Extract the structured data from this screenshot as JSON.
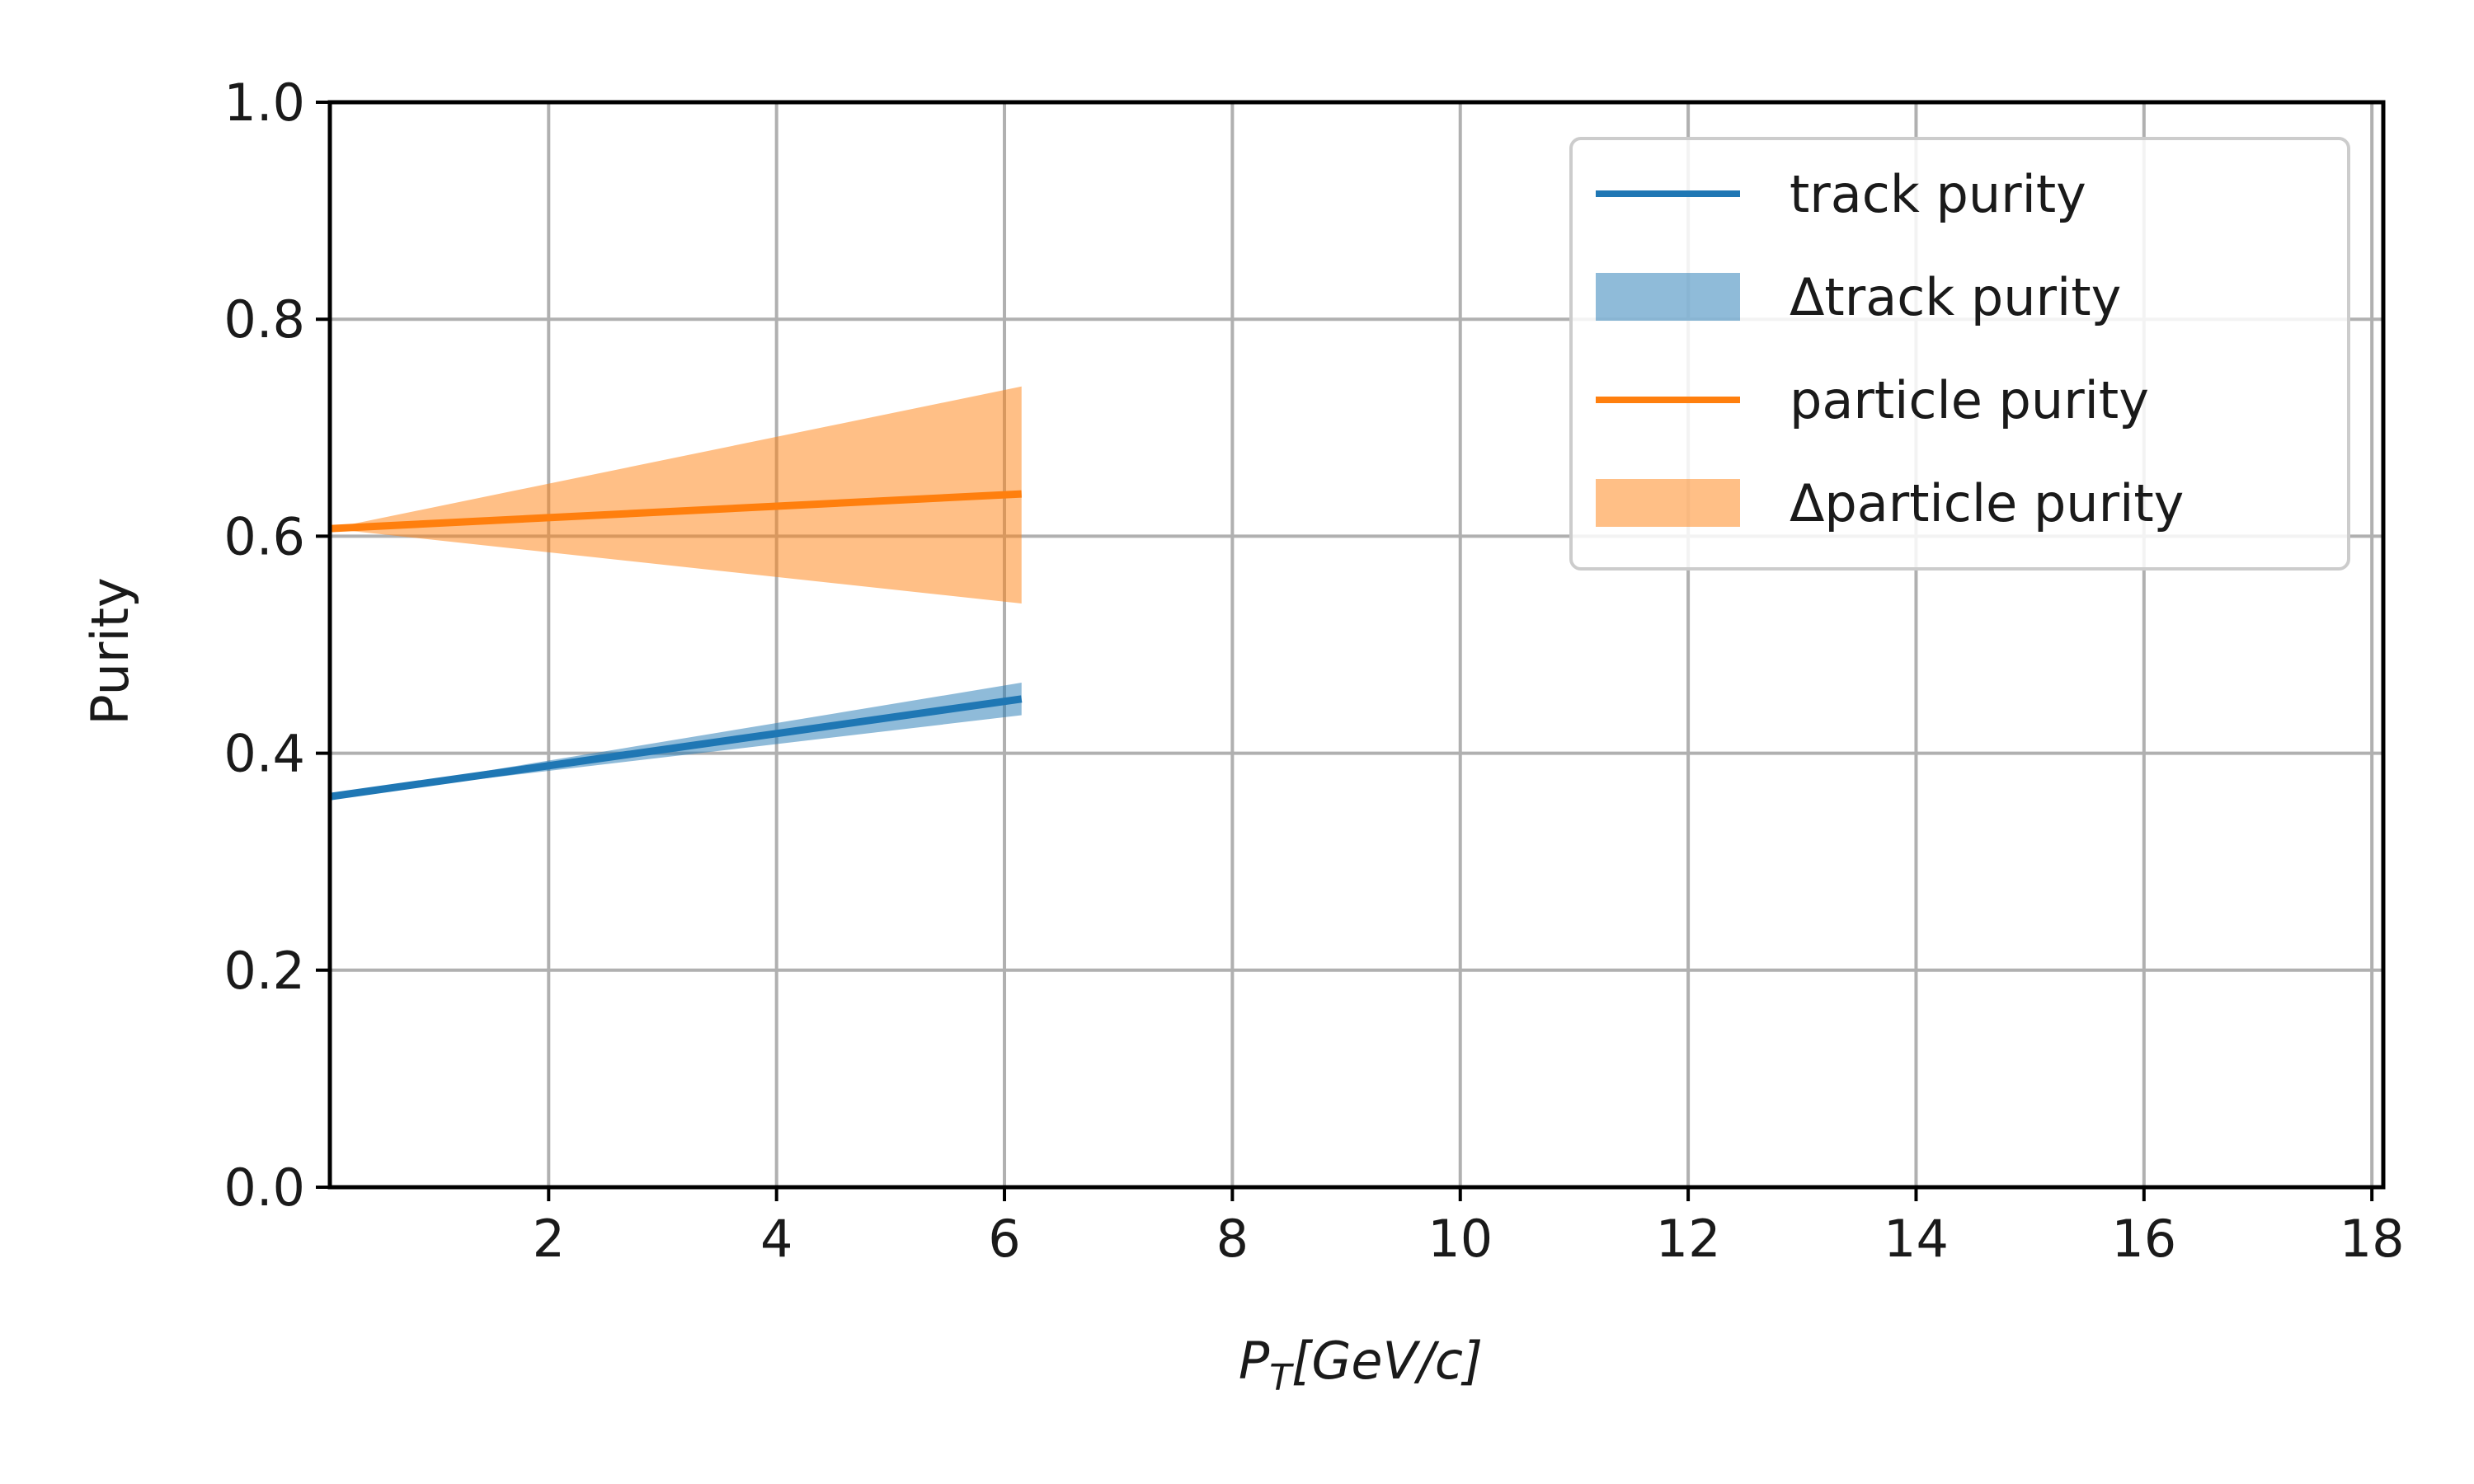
{
  "chart_data": {
    "type": "line",
    "title": "",
    "xlabel": "P_T[GeV/c]",
    "xlabel_parts": {
      "main": "P",
      "sub": "T",
      "rest": "[GeV/c]"
    },
    "ylabel": "Purity",
    "xlim": [
      0.08,
      18.1
    ],
    "ylim": [
      0.0,
      1.0
    ],
    "xticks": [
      2,
      4,
      6,
      8,
      10,
      12,
      14,
      16,
      18
    ],
    "yticks": [
      0.0,
      0.2,
      0.4,
      0.6,
      0.8,
      1.0
    ],
    "xtick_labels": [
      "2",
      "4",
      "6",
      "8",
      "10",
      "12",
      "14",
      "16",
      "18"
    ],
    "ytick_labels": [
      "0.0",
      "0.2",
      "0.4",
      "0.6",
      "0.8",
      "1.0"
    ],
    "grid": true,
    "legend_position": "top-right",
    "series": [
      {
        "name": "track purity",
        "kind": "line",
        "color": "#1f77b4",
        "x": [
          0.08,
          6.15
        ],
        "y": [
          0.36,
          0.45
        ]
      },
      {
        "name": "Δtrack purity",
        "kind": "band",
        "color": "#1f77b4",
        "opacity": 0.5,
        "x": [
          0.08,
          6.15
        ],
        "y_low": [
          0.36,
          0.435
        ],
        "y_high": [
          0.36,
          0.465
        ]
      },
      {
        "name": "particle purity",
        "kind": "line",
        "color": "#ff7f0e",
        "x": [
          0.08,
          6.15
        ],
        "y": [
          0.607,
          0.639
        ]
      },
      {
        "name": "Δparticle purity",
        "kind": "band",
        "color": "#ff7f0e",
        "opacity": 0.5,
        "x": [
          0.08,
          6.15
        ],
        "y_low": [
          0.607,
          0.538
        ],
        "y_high": [
          0.607,
          0.738
        ]
      }
    ]
  }
}
